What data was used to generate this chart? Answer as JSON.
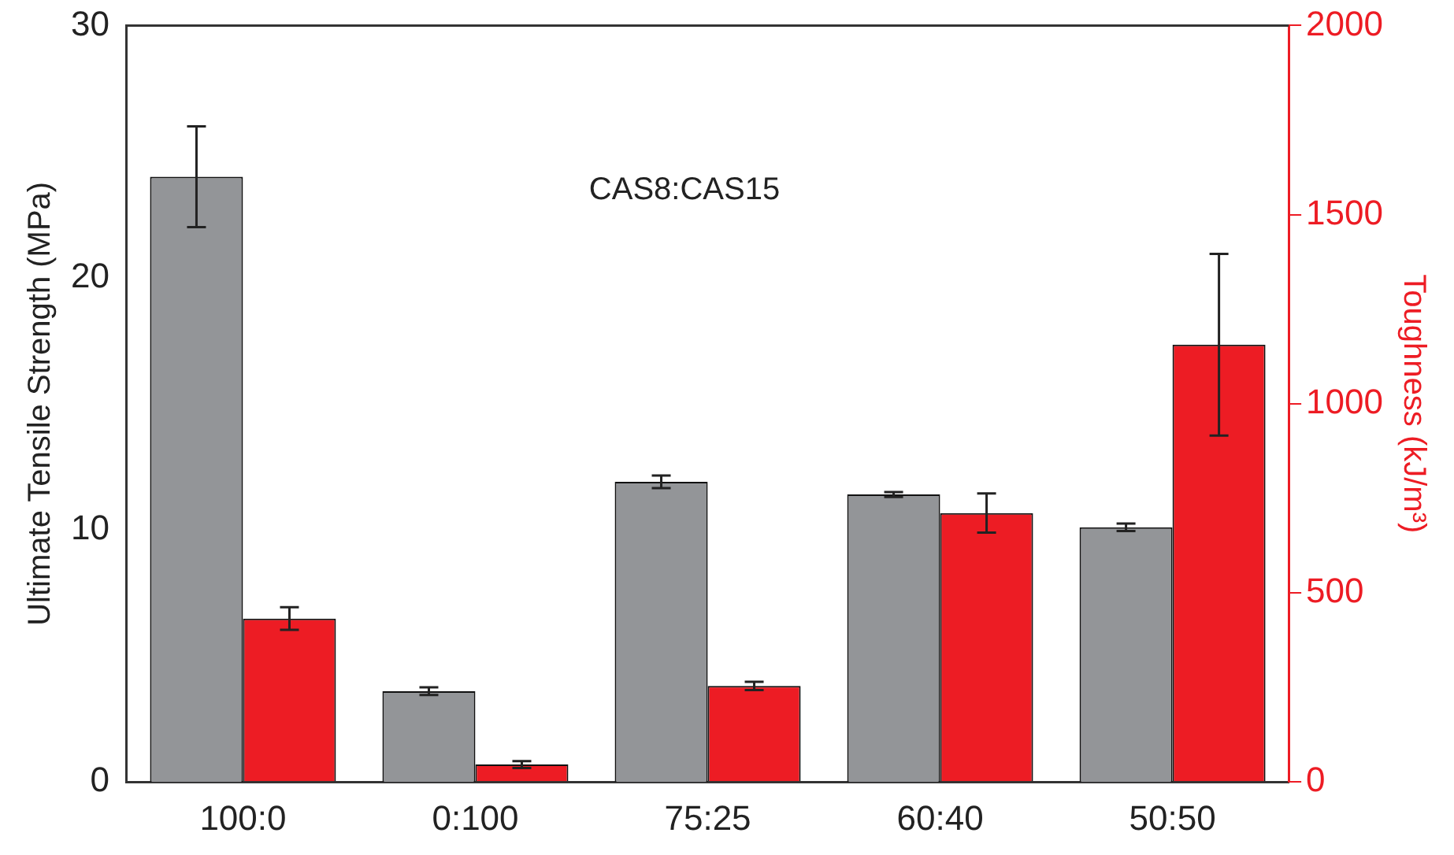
{
  "chart_data": {
    "type": "bar",
    "categories": [
      "100:0",
      "0:100",
      "75:25",
      "60:40",
      "50:50"
    ],
    "ylabel": "Ultimate Tensile Strength (MPa)",
    "y2label": "Toughness (kJ/m³)",
    "annotations": [
      "CAS8:CAS15"
    ],
    "series": [
      {
        "color": "#939598",
        "values": [
          24,
          3.6,
          11.9,
          11.4,
          10.1
        ],
        "errors": [
          2,
          0.15,
          0.25,
          0.1,
          0.15
        ]
      },
      {
        "color": "#ed1c24",
        "axis": "y2",
        "values": [
          432,
          46,
          254,
          711,
          1156
        ],
        "errors": [
          30,
          9,
          11,
          52,
          240
        ]
      }
    ],
    "ylim": [
      0,
      30
    ],
    "yticks": [
      0,
      10,
      20,
      30
    ],
    "y2lim": [
      0,
      2000
    ],
    "y2ticks": [
      0,
      500,
      1000,
      1500,
      2000
    ],
    "grid": false,
    "legend": false
  }
}
